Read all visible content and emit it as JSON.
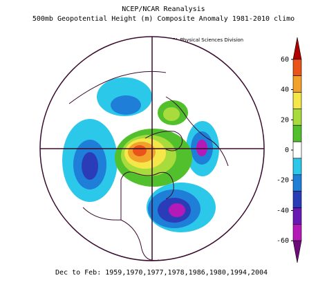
{
  "titles": {
    "line1": "NCEP/NCAR Reanalysis",
    "line2": "500mb Geopotential Height (m) Composite Anomaly 1981-2010 climo",
    "credit": "NOAA/ESRL Physical Sciences Division"
  },
  "footer": "Dec to Feb: 1959,1970,1977,1978,1986,1980,1994,2004",
  "colorbar": {
    "ticks": [
      "60",
      "40",
      "20",
      "0",
      "-20",
      "-40",
      "-60"
    ],
    "colors": [
      "#b00000",
      "#e8541a",
      "#f2a22a",
      "#f5e64a",
      "#a8dc3c",
      "#52c02c",
      "#ffffff",
      "#2cc8ea",
      "#1e7ed8",
      "#2a3cb8",
      "#6a1ab4",
      "#b41ab8",
      "#6e0a7a"
    ]
  },
  "projection": "north-polar-stereographic"
}
